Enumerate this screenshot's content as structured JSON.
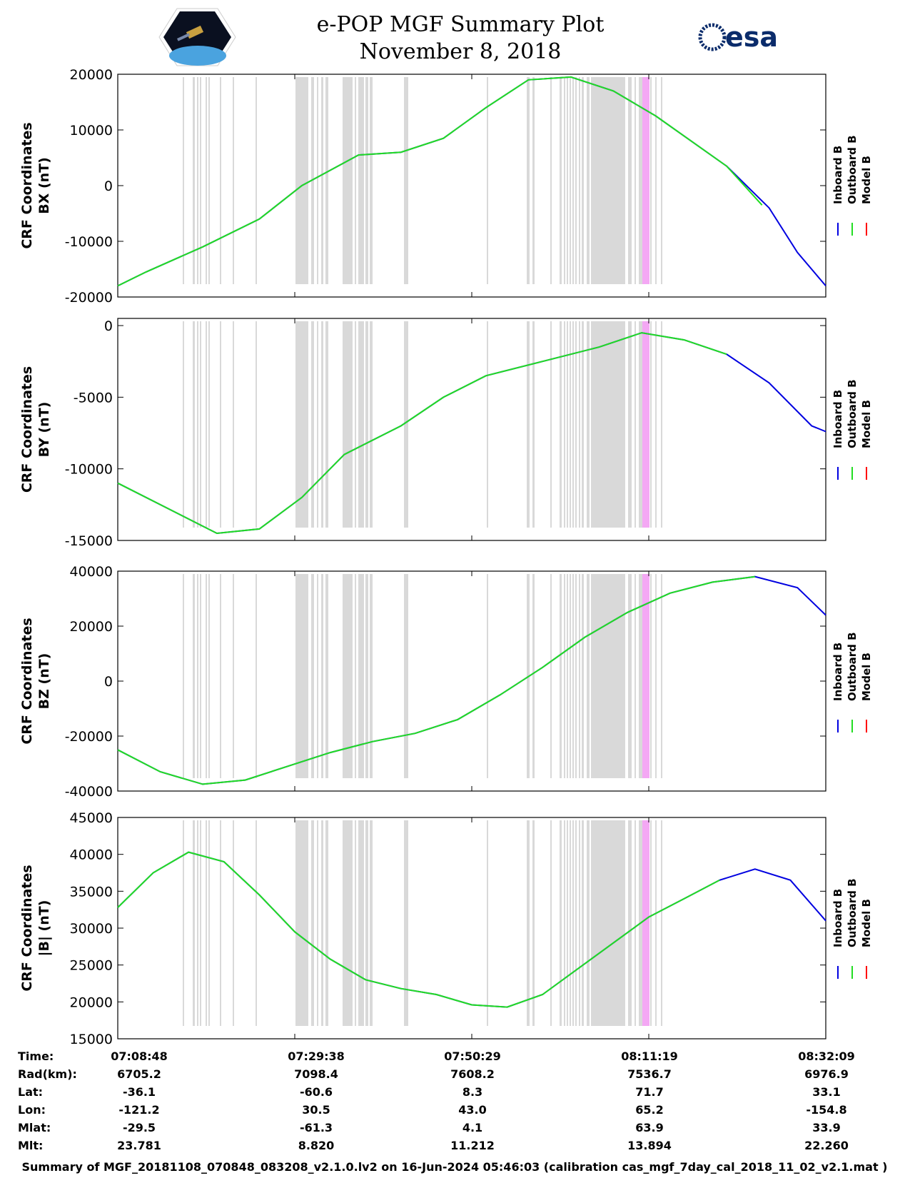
{
  "header": {
    "title_line1": "e-POP MGF Summary Plot",
    "title_line2": "November 8, 2018",
    "esa_logo_text": "esa",
    "mission_logo_icon": "satellite-icon"
  },
  "legend": {
    "inboard": "Inboard B",
    "outboard": "Outboard B",
    "model": "Model B"
  },
  "colors": {
    "inboard": "#0000e0",
    "outboard": "#22dd22",
    "model": "#ff0000",
    "gap_band": "#d9d9d9",
    "highlight_band": "#f4a8f4"
  },
  "chart_data": [
    {
      "type": "line",
      "id": "bx",
      "ylabel_1": "CRF Coordinates",
      "ylabel_2": "BX (nT)",
      "ylim": [
        -20000,
        20000
      ],
      "yticks": [
        20000,
        10000,
        0,
        -10000,
        -20000
      ],
      "xlim_seconds": [
        0,
        5000
      ],
      "xticks": [
        "07:08:48",
        "07:29:38",
        "07:50:29",
        "08:11:19",
        "08:32:09"
      ],
      "series": [
        {
          "name": "Inboard B",
          "x": [
            0,
            200,
            600,
            1000,
            1300,
            1700,
            2000,
            2300,
            2600,
            2900,
            3200,
            3500,
            3800,
            4300,
            4600,
            4800,
            5000
          ],
          "values": [
            -18000,
            -15500,
            -11000,
            -6000,
            0,
            5500,
            6000,
            8500,
            14000,
            19000,
            19500,
            17000,
            12500,
            3500,
            -4000,
            -12000,
            -18000
          ]
        },
        {
          "name": "Outboard B",
          "x": [
            0,
            200,
            600,
            1000,
            1300,
            1700,
            2000,
            2300,
            2600,
            2900,
            3200,
            3500,
            3800,
            4300,
            4550
          ],
          "values": [
            -18000,
            -15500,
            -11000,
            -6000,
            0,
            5500,
            6000,
            8500,
            14000,
            19000,
            19500,
            17000,
            12500,
            3500,
            -3500
          ]
        }
      ]
    },
    {
      "type": "line",
      "id": "by",
      "ylabel_1": "CRF Coordinates",
      "ylabel_2": "BY (nT)",
      "ylim": [
        -15000,
        500
      ],
      "yticks": [
        0,
        -5000,
        -10000,
        -15000
      ],
      "xlim_seconds": [
        0,
        5000
      ],
      "xticks": [
        "07:08:48",
        "07:29:38",
        "07:50:29",
        "08:11:19",
        "08:32:09"
      ],
      "series": [
        {
          "name": "Inboard B",
          "x": [
            0,
            400,
            700,
            1000,
            1300,
            1600,
            2000,
            2300,
            2600,
            3000,
            3400,
            3700,
            4000,
            4300,
            4600,
            4900,
            5000
          ],
          "values": [
            -11000,
            -13000,
            -14500,
            -14200,
            -12000,
            -9000,
            -7000,
            -5000,
            -3500,
            -2500,
            -1500,
            -500,
            -1000,
            -2000,
            -4000,
            -7000,
            -7400
          ]
        },
        {
          "name": "Outboard B",
          "x": [
            0,
            400,
            700,
            1000,
            1300,
            1600,
            2000,
            2300,
            2600,
            3000,
            3400,
            3700,
            4000,
            4300
          ],
          "values": [
            -11000,
            -13000,
            -14500,
            -14200,
            -12000,
            -9000,
            -7000,
            -5000,
            -3500,
            -2500,
            -1500,
            -500,
            -1000,
            -2000
          ]
        }
      ]
    },
    {
      "type": "line",
      "id": "bz",
      "ylabel_1": "CRF Coordinates",
      "ylabel_2": "BZ (nT)",
      "ylim": [
        -40000,
        40000
      ],
      "yticks": [
        40000,
        20000,
        0,
        -20000,
        -40000
      ],
      "xlim_seconds": [
        0,
        5000
      ],
      "xticks": [
        "07:08:48",
        "07:29:38",
        "07:50:29",
        "08:11:19",
        "08:32:09"
      ],
      "series": [
        {
          "name": "Inboard B",
          "x": [
            0,
            300,
            600,
            900,
            1200,
            1500,
            1800,
            2100,
            2400,
            2700,
            3000,
            3300,
            3600,
            3900,
            4200,
            4500,
            4800,
            5000
          ],
          "values": [
            -25000,
            -33000,
            -37500,
            -36000,
            -31000,
            -26000,
            -22000,
            -19000,
            -14000,
            -5000,
            5000,
            16000,
            25000,
            32000,
            36000,
            38000,
            34000,
            24000
          ]
        },
        {
          "name": "Outboard B",
          "x": [
            0,
            300,
            600,
            900,
            1200,
            1500,
            1800,
            2100,
            2400,
            2700,
            3000,
            3300,
            3600,
            3900,
            4200,
            4500
          ],
          "values": [
            -25000,
            -33000,
            -37500,
            -36000,
            -31000,
            -26000,
            -22000,
            -19000,
            -14000,
            -5000,
            5000,
            16000,
            25000,
            32000,
            36000,
            38000
          ]
        }
      ]
    },
    {
      "type": "line",
      "id": "bmag",
      "ylabel_1": "CRF Coordinates",
      "ylabel_2": "|B| (nT)",
      "ylim": [
        15000,
        45000
      ],
      "yticks": [
        45000,
        40000,
        35000,
        30000,
        25000,
        20000,
        15000
      ],
      "xlim_seconds": [
        0,
        5000
      ],
      "xticks": [
        "07:08:48",
        "07:29:38",
        "07:50:29",
        "08:11:19",
        "08:32:09"
      ],
      "series": [
        {
          "name": "Inboard B",
          "x": [
            0,
            250,
            500,
            750,
            1000,
            1250,
            1500,
            1750,
            2000,
            2250,
            2500,
            2750,
            3000,
            3250,
            3500,
            3750,
            4000,
            4250,
            4500,
            4750,
            5000
          ],
          "values": [
            32800,
            37500,
            40300,
            39000,
            34500,
            29500,
            25800,
            23000,
            21800,
            21000,
            19600,
            19300,
            21000,
            24500,
            28000,
            31500,
            34000,
            36500,
            38000,
            36500,
            31000
          ]
        },
        {
          "name": "Outboard B",
          "x": [
            0,
            250,
            500,
            750,
            1000,
            1250,
            1500,
            1750,
            2000,
            2250,
            2500,
            2750,
            3000,
            3250,
            3500,
            3750,
            4000,
            4250
          ],
          "values": [
            32800,
            37500,
            40300,
            39000,
            34500,
            29500,
            25800,
            23000,
            21800,
            21000,
            19600,
            19300,
            21000,
            24500,
            28000,
            31500,
            34000,
            36500
          ]
        }
      ]
    }
  ],
  "info_table": {
    "labels": [
      "Time:",
      "Rad(km):",
      "Lat:",
      "Lon:",
      "Mlat:",
      "Mlt:"
    ],
    "columns": [
      [
        "07:08:48",
        "6705.2",
        "-36.1",
        "-121.2",
        "-29.5",
        "23.781"
      ],
      [
        "07:29:38",
        "7098.4",
        "-60.6",
        "30.5",
        "-61.3",
        "8.820"
      ],
      [
        "07:50:29",
        "7608.2",
        "8.3",
        "43.0",
        "4.1",
        "11.212"
      ],
      [
        "08:11:19",
        "7536.7",
        "71.7",
        "65.2",
        "63.9",
        "13.894"
      ],
      [
        "08:32:09",
        "6976.9",
        "33.1",
        "-154.8",
        "33.9",
        "22.260"
      ]
    ]
  },
  "footer": "Summary of MGF_20181108_070848_083208_v2.1.0.lv2 on 16-Jun-2024 05:46:03 (calibration cas_mgf_7day_cal_2018_11_02_v2.1.mat )"
}
